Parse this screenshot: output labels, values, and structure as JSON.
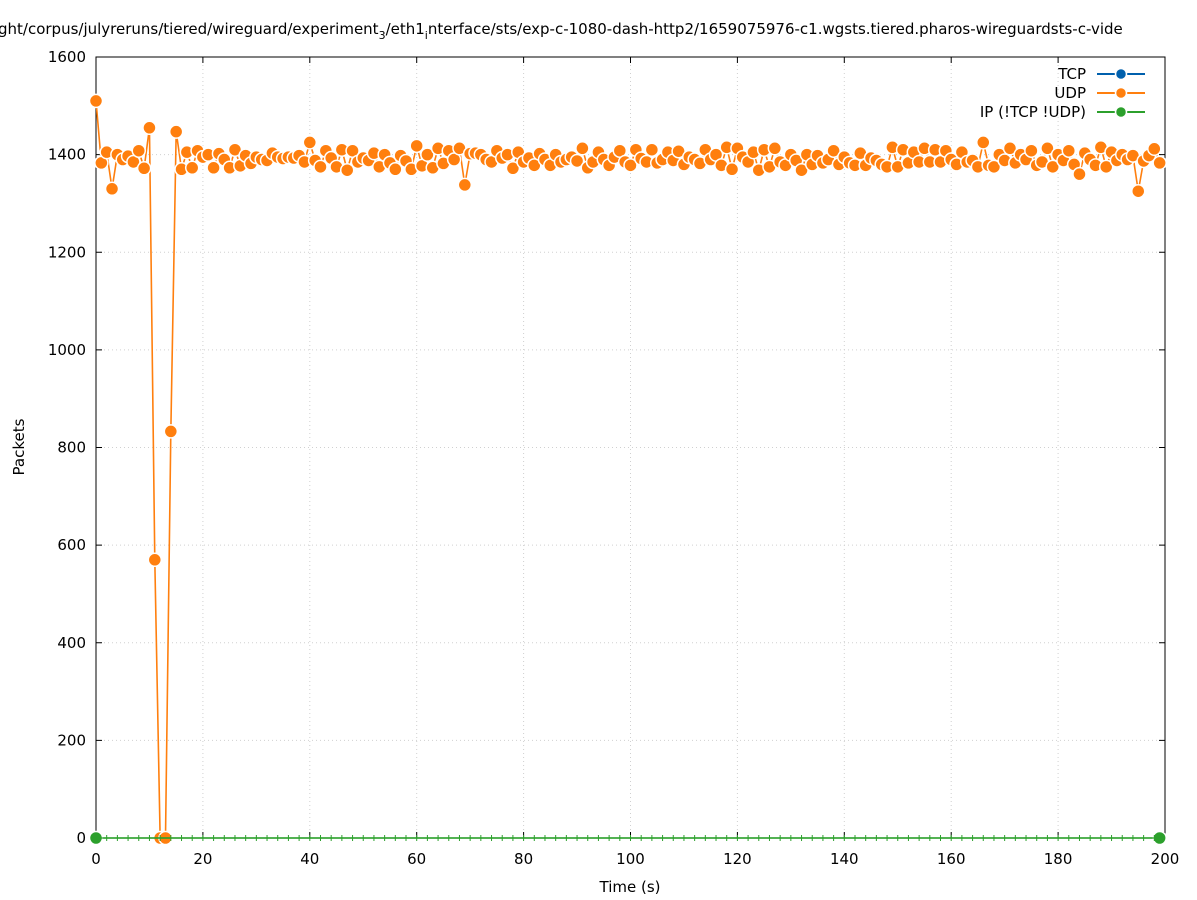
{
  "chart_data": {
    "type": "line",
    "title": "ght/corpus/julyreruns/tiered/wireguard/experiment",
    "title_sub_1": "3",
    "title_mid": "/eth1",
    "title_sub_2": "i",
    "title_end": "nterface/sts/exp-c-1080-dash-http2/1659075976-c1.wgsts.tiered.pharos-wireguardsts-c-vide",
    "xlabel": "Time (s)",
    "ylabel": "Packets",
    "xlim": [
      0,
      200
    ],
    "ylim": [
      0,
      1600
    ],
    "x_ticks": [
      0,
      20,
      40,
      60,
      80,
      100,
      120,
      140,
      160,
      180,
      200
    ],
    "y_ticks": [
      0,
      200,
      400,
      600,
      800,
      1000,
      1200,
      1400,
      1600
    ],
    "grid": true,
    "legend_position": "top-right",
    "series": [
      {
        "name": "TCP",
        "color": "#0060ad",
        "x": [],
        "values": []
      },
      {
        "name": "UDP",
        "color": "#ff7f0e",
        "x": [
          0,
          1,
          2,
          3,
          4,
          5,
          6,
          7,
          8,
          9,
          10,
          11,
          12,
          13,
          14,
          15,
          16,
          17,
          18,
          19,
          20,
          21,
          22,
          23,
          24,
          25,
          26,
          27,
          28,
          29,
          30,
          31,
          32,
          33,
          34,
          35,
          36,
          37,
          38,
          39,
          40,
          41,
          42,
          43,
          44,
          45,
          46,
          47,
          48,
          49,
          50,
          51,
          52,
          53,
          54,
          55,
          56,
          57,
          58,
          59,
          60,
          61,
          62,
          63,
          64,
          65,
          66,
          67,
          68,
          69,
          70,
          71,
          72,
          73,
          74,
          75,
          76,
          77,
          78,
          79,
          80,
          81,
          82,
          83,
          84,
          85,
          86,
          87,
          88,
          89,
          90,
          91,
          92,
          93,
          94,
          95,
          96,
          97,
          98,
          99,
          100,
          101,
          102,
          103,
          104,
          105,
          106,
          107,
          108,
          109,
          110,
          111,
          112,
          113,
          114,
          115,
          116,
          117,
          118,
          119,
          120,
          121,
          122,
          123,
          124,
          125,
          126,
          127,
          128,
          129,
          130,
          131,
          132,
          133,
          134,
          135,
          136,
          137,
          138,
          139,
          140,
          141,
          142,
          143,
          144,
          145,
          146,
          147,
          148,
          149,
          150,
          151,
          152,
          153,
          154,
          155,
          156,
          157,
          158,
          159,
          160,
          161,
          162,
          163,
          164,
          165,
          166,
          167,
          168,
          169,
          170,
          171,
          172,
          173,
          174,
          175,
          176,
          177,
          178,
          179,
          180,
          181,
          182,
          183,
          184,
          185,
          186,
          187,
          188,
          189,
          190,
          191,
          192,
          193,
          194,
          195,
          196,
          197,
          198,
          199
        ],
        "values": [
          1510,
          1383,
          1405,
          1330,
          1400,
          1390,
          1397,
          1385,
          1408,
          1372,
          1455,
          570,
          0,
          0,
          833,
          1447,
          1370,
          1405,
          1373,
          1408,
          1395,
          1400,
          1373,
          1402,
          1390,
          1373,
          1410,
          1377,
          1398,
          1382,
          1395,
          1390,
          1388,
          1403,
          1395,
          1392,
          1395,
          1393,
          1398,
          1385,
          1425,
          1388,
          1375,
          1408,
          1393,
          1375,
          1410,
          1368,
          1408,
          1385,
          1393,
          1388,
          1403,
          1375,
          1400,
          1383,
          1370,
          1398,
          1387,
          1370,
          1418,
          1377,
          1400,
          1373,
          1413,
          1382,
          1408,
          1390,
          1413,
          1338,
          1402,
          1403,
          1400,
          1390,
          1385,
          1408,
          1393,
          1400,
          1372,
          1405,
          1385,
          1393,
          1378,
          1402,
          1390,
          1378,
          1400,
          1385,
          1390,
          1395,
          1387,
          1413,
          1373,
          1385,
          1405,
          1390,
          1378,
          1395,
          1408,
          1385,
          1378,
          1410,
          1392,
          1385,
          1410,
          1383,
          1390,
          1405,
          1388,
          1407,
          1380,
          1395,
          1390,
          1382,
          1410,
          1390,
          1400,
          1378,
          1415,
          1370,
          1413,
          1395,
          1385,
          1405,
          1368,
          1410,
          1375,
          1413,
          1385,
          1378,
          1400,
          1388,
          1368,
          1400,
          1380,
          1398,
          1383,
          1390,
          1408,
          1380,
          1395,
          1383,
          1378,
          1403,
          1378,
          1393,
          1388,
          1380,
          1375,
          1415,
          1375,
          1410,
          1383,
          1405,
          1385,
          1413,
          1385,
          1410,
          1385,
          1408,
          1390,
          1380,
          1405,
          1385,
          1388,
          1375,
          1425,
          1378,
          1375,
          1400,
          1388,
          1413,
          1383,
          1400,
          1390,
          1408,
          1378,
          1385,
          1413,
          1375,
          1400,
          1388,
          1408,
          1380,
          1360,
          1403,
          1390,
          1378,
          1415,
          1375,
          1405,
          1388,
          1400,
          1390,
          1398,
          1325,
          1387,
          1398,
          1412,
          1383
        ]
      },
      {
        "name": "IP (!TCP  !UDP)",
        "color": "#2ca02c",
        "x": [
          0,
          199
        ],
        "values": [
          0,
          0
        ]
      }
    ]
  }
}
